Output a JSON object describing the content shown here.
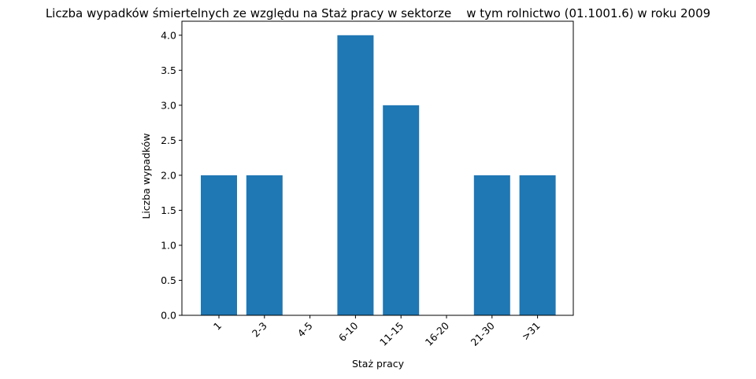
{
  "chart_data": {
    "type": "bar",
    "title": "Liczba wypadków śmiertelnych ze względu na Staż pracy w sektorze    w tym rolnictwo (01.1001.6) w roku 2009",
    "xlabel": "Staż pracy",
    "ylabel": "Liczba wypadków",
    "categories": [
      "1",
      "2-3",
      "4-5",
      "6-10",
      "11-15",
      "16-20",
      "21-30",
      ">31"
    ],
    "values": [
      2,
      2,
      0,
      4,
      3,
      0,
      2,
      2
    ],
    "ylim": [
      0,
      4.2
    ],
    "yticks": [
      "0.0",
      "0.5",
      "1.0",
      "1.5",
      "2.0",
      "2.5",
      "3.0",
      "3.5",
      "4.0"
    ],
    "bar_color": "#1f77b4",
    "grid": false,
    "legend": false
  }
}
